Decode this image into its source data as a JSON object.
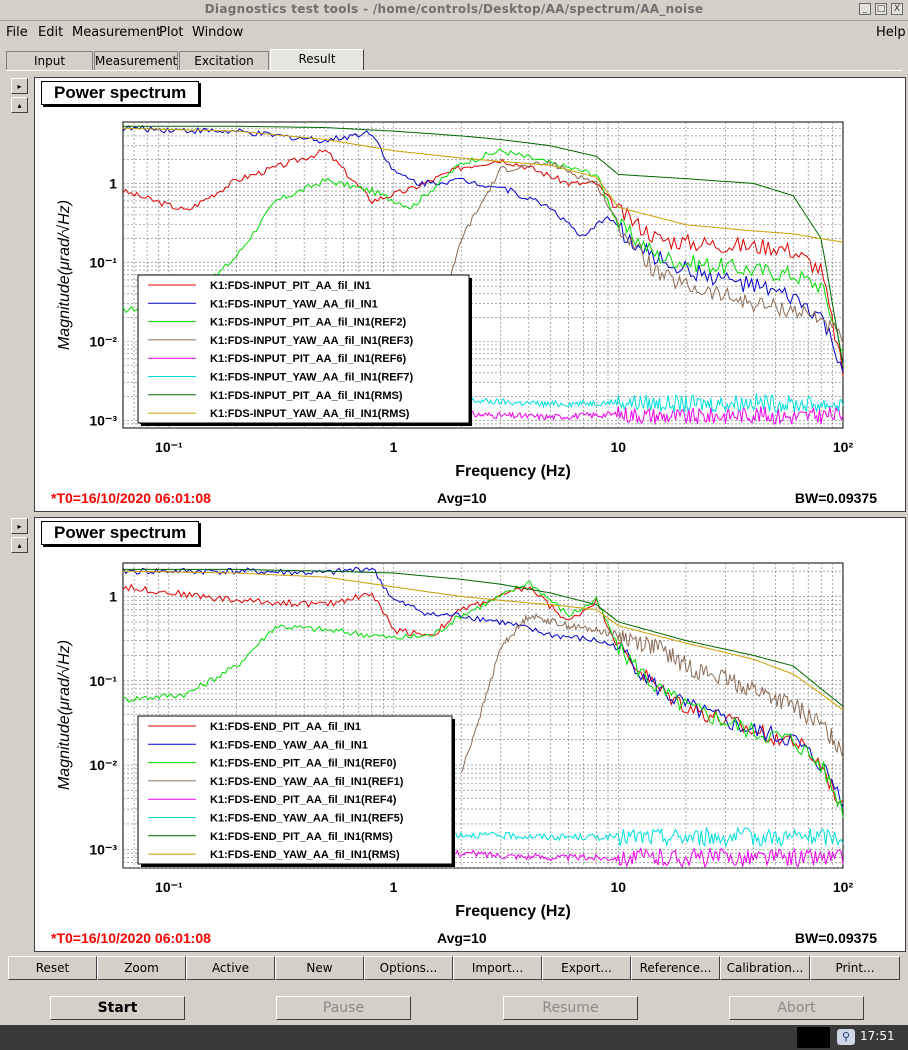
{
  "window": {
    "title": "Diagnostics test tools - /home/controls/Desktop/AA/spectrum/AA_noise",
    "buttons": [
      "_",
      "□",
      "X"
    ]
  },
  "menu": {
    "items": [
      "File",
      "Edit",
      "Measurement",
      "Plot",
      "Window"
    ],
    "help": "Help"
  },
  "tabs": [
    "Input",
    "Measurement",
    "Excitation",
    "Result"
  ],
  "active_tab": "Result",
  "panels": [
    {
      "title": "Power spectrum",
      "t0": "*T0=16/10/2020 06:01:08",
      "avg": "Avg=10",
      "bw": "BW=0.09375"
    },
    {
      "title": "Power spectrum",
      "t0": "*T0=16/10/2020 06:01:08",
      "avg": "Avg=10",
      "bw": "BW=0.09375"
    }
  ],
  "chart_data": [
    {
      "type": "line",
      "xlabel": "Frequency (Hz)",
      "ylabel": "Magnitude(μrad/√Hz)",
      "xscale": "log",
      "yscale": "log",
      "xlim": [
        0.0625,
        100
      ],
      "ylim": [
        0.0008,
        6
      ],
      "x_ticks": [
        "10⁻¹",
        "1",
        "10",
        "10²"
      ],
      "y_ticks": [
        "10⁻³",
        "10⁻²",
        "10⁻¹",
        "1"
      ],
      "grid": true,
      "legend_position": "left-middle",
      "series": [
        {
          "name": "K1:FDS-INPUT_PIT_AA_fil_IN1",
          "color": "#e00000",
          "x": [
            0.0625,
            0.12,
            0.2,
            0.3,
            0.5,
            0.8,
            1.2,
            2,
            3,
            4,
            6,
            8,
            10,
            15,
            20,
            40,
            50,
            60,
            80,
            100
          ],
          "values": [
            0.8,
            0.45,
            1.1,
            1.6,
            2.6,
            0.6,
            0.85,
            1.6,
            2.0,
            1.6,
            1.0,
            1.0,
            0.45,
            0.2,
            0.18,
            0.16,
            0.16,
            0.14,
            0.08,
            0.004
          ]
        },
        {
          "name": "K1:FDS-INPUT_YAW_AA_fil_IN1",
          "color": "#0000cc",
          "x": [
            0.0625,
            0.2,
            0.5,
            0.8,
            1.0,
            1.3,
            2,
            3,
            5,
            7,
            9,
            12,
            20,
            40,
            60,
            80,
            100
          ],
          "values": [
            5.0,
            4.5,
            3.5,
            4.5,
            1.4,
            1.0,
            1.1,
            0.9,
            0.5,
            0.2,
            0.4,
            0.15,
            0.08,
            0.05,
            0.035,
            0.02,
            0.0045
          ]
        },
        {
          "name": "K1:FDS-INPUT_PIT_AA_fil_IN1(REF2)",
          "color": "#00dd00",
          "x": [
            0.0625,
            0.12,
            0.2,
            0.3,
            0.5,
            0.8,
            1.2,
            2,
            3,
            5,
            8,
            10,
            15,
            20,
            40,
            60,
            80,
            100
          ],
          "values": [
            0.025,
            0.03,
            0.12,
            0.6,
            1.1,
            0.8,
            0.5,
            1.8,
            2.6,
            1.8,
            1.3,
            0.3,
            0.12,
            0.1,
            0.08,
            0.07,
            0.05,
            0.008
          ]
        },
        {
          "name": "K1:FDS-INPUT_YAW_AA_fil_IN1(REF3)",
          "color": "#8b6b55",
          "x": [
            0.3,
            0.5,
            0.8,
            1.0,
            1.3,
            2,
            3,
            5,
            8,
            10,
            15,
            20,
            40,
            60,
            80,
            100
          ],
          "values": [
            0.015,
            0.03,
            0.02,
            0.006,
            0.002,
            0.2,
            1.5,
            1.8,
            1.0,
            0.3,
            0.07,
            0.05,
            0.03,
            0.025,
            0.02,
            0.01
          ]
        },
        {
          "name": "K1:FDS-INPUT_PIT_AA_fil_IN1(REF6)",
          "color": "#ee00ee",
          "x": [
            2,
            5,
            10,
            20,
            40,
            60,
            100
          ],
          "values": [
            0.0012,
            0.0011,
            0.0012,
            0.0011,
            0.0012,
            0.0011,
            0.0012
          ]
        },
        {
          "name": "K1:FDS-INPUT_YAW_AA_fil_IN1(REF7)",
          "color": "#00dddd",
          "x": [
            2,
            5,
            10,
            20,
            40,
            60,
            100
          ],
          "values": [
            0.0018,
            0.0016,
            0.0017,
            0.0016,
            0.0017,
            0.0016,
            0.0016
          ]
        },
        {
          "name": "K1:FDS-INPUT_PIT_AA_fil_IN1(RMS)",
          "color": "#006600",
          "x": [
            0.0625,
            0.2,
            0.5,
            1,
            2,
            3,
            5,
            8,
            10,
            20,
            40,
            60,
            80,
            100
          ],
          "values": [
            5.3,
            5.3,
            5.1,
            4.6,
            4.0,
            3.6,
            3.0,
            2.2,
            1.3,
            1.15,
            1.0,
            0.7,
            0.2,
            0.005
          ]
        },
        {
          "name": "K1:FDS-INPUT_YAW_AA_fil_IN1(RMS)",
          "color": "#c8a000",
          "x": [
            0.0625,
            0.2,
            0.5,
            1,
            2,
            3,
            5,
            8,
            10,
            20,
            40,
            60,
            80,
            100
          ],
          "values": [
            5.0,
            4.6,
            3.6,
            2.6,
            2.1,
            1.9,
            1.7,
            1.2,
            0.5,
            0.3,
            0.25,
            0.23,
            0.2,
            0.18
          ]
        }
      ]
    },
    {
      "type": "line",
      "xlabel": "Frequency (Hz)",
      "ylabel": "Magnitude(μrad/√Hz)",
      "xscale": "log",
      "yscale": "log",
      "xlim": [
        0.0625,
        100
      ],
      "ylim": [
        0.0006,
        2.5
      ],
      "x_ticks": [
        "10⁻¹",
        "1",
        "10",
        "10²"
      ],
      "y_ticks": [
        "10⁻³",
        "10⁻²",
        "10⁻¹",
        "1"
      ],
      "grid": true,
      "legend_position": "left-bottom",
      "series": [
        {
          "name": "K1:FDS-END_PIT_AA_fil_IN1",
          "color": "#e00000",
          "x": [
            0.0625,
            0.2,
            0.5,
            0.8,
            1.0,
            1.5,
            2,
            3,
            4,
            6,
            8,
            10,
            15,
            20,
            40,
            60,
            80,
            100
          ],
          "values": [
            1.3,
            0.9,
            0.8,
            1.1,
            0.4,
            0.35,
            0.7,
            1.0,
            1.3,
            0.5,
            0.9,
            0.25,
            0.08,
            0.05,
            0.025,
            0.02,
            0.01,
            0.003
          ]
        },
        {
          "name": "K1:FDS-END_YAW_AA_fil_IN1",
          "color": "#0000cc",
          "x": [
            0.0625,
            0.2,
            0.5,
            0.8,
            1.0,
            1.5,
            2,
            3,
            5,
            8,
            10,
            15,
            20,
            40,
            60,
            80,
            100
          ],
          "values": [
            2.0,
            2.0,
            1.9,
            2.2,
            0.9,
            0.6,
            0.6,
            0.5,
            0.35,
            0.3,
            0.25,
            0.08,
            0.05,
            0.025,
            0.02,
            0.01,
            0.004
          ]
        },
        {
          "name": "K1:FDS-END_PIT_AA_fil_IN1(REF0)",
          "color": "#00dd00",
          "x": [
            0.0625,
            0.12,
            0.2,
            0.3,
            0.5,
            0.8,
            1.0,
            1.5,
            2,
            3,
            4,
            6,
            8,
            10,
            15,
            20,
            40,
            60,
            80,
            100
          ],
          "values": [
            0.06,
            0.07,
            0.15,
            0.45,
            0.4,
            0.35,
            0.32,
            0.35,
            0.6,
            1.0,
            1.5,
            0.6,
            0.9,
            0.25,
            0.08,
            0.05,
            0.025,
            0.02,
            0.01,
            0.003
          ]
        },
        {
          "name": "K1:FDS-END_YAW_AA_fil_IN1(REF1)",
          "color": "#8b6b55",
          "x": [
            2,
            2.5,
            3,
            4,
            6,
            8,
            10,
            15,
            20,
            40,
            60,
            80,
            100
          ],
          "values": [
            0.008,
            0.05,
            0.25,
            0.6,
            0.45,
            0.4,
            0.35,
            0.25,
            0.15,
            0.08,
            0.05,
            0.03,
            0.015
          ]
        },
        {
          "name": "K1:FDS-END_PIT_AA_fil_IN1(REF4)",
          "color": "#ee00ee",
          "x": [
            1,
            2,
            5,
            10,
            20,
            40,
            60,
            100
          ],
          "values": [
            0.0012,
            0.0009,
            0.0008,
            0.0008,
            0.0008,
            0.0008,
            0.0008,
            0.0008
          ]
        },
        {
          "name": "K1:FDS-END_YAW_AA_fil_IN1(REF5)",
          "color": "#00dddd",
          "x": [
            1,
            2,
            5,
            10,
            20,
            40,
            60,
            100
          ],
          "values": [
            0.0018,
            0.0015,
            0.0014,
            0.0014,
            0.0014,
            0.0014,
            0.0014,
            0.0014
          ]
        },
        {
          "name": "K1:FDS-END_PIT_AA_fil_IN1(RMS)",
          "color": "#006600",
          "x": [
            0.0625,
            0.2,
            0.5,
            1,
            2,
            3,
            5,
            8,
            10,
            20,
            40,
            60,
            80,
            100
          ],
          "values": [
            2.1,
            2.1,
            2.0,
            1.9,
            1.6,
            1.4,
            1.1,
            0.8,
            0.5,
            0.3,
            0.2,
            0.15,
            0.08,
            0.05
          ]
        },
        {
          "name": "K1:FDS-END_YAW_AA_fil_IN1(RMS)",
          "color": "#c8a000",
          "x": [
            0.0625,
            0.2,
            0.5,
            1,
            2,
            3,
            5,
            8,
            10,
            20,
            40,
            60,
            80,
            100
          ],
          "values": [
            2.0,
            1.9,
            1.7,
            1.3,
            1.0,
            0.9,
            0.8,
            0.7,
            0.45,
            0.28,
            0.18,
            0.12,
            0.07,
            0.045
          ]
        }
      ]
    }
  ],
  "toolbar": [
    "Reset",
    "Zoom",
    "Active",
    "New",
    "Options...",
    "Import...",
    "Export...",
    "Reference...",
    "Calibration...",
    "Print..."
  ],
  "controls": {
    "start": "Start",
    "pause": "Pause",
    "resume": "Resume",
    "abort": "Abort"
  },
  "taskbar": {
    "clock": "17:51"
  }
}
